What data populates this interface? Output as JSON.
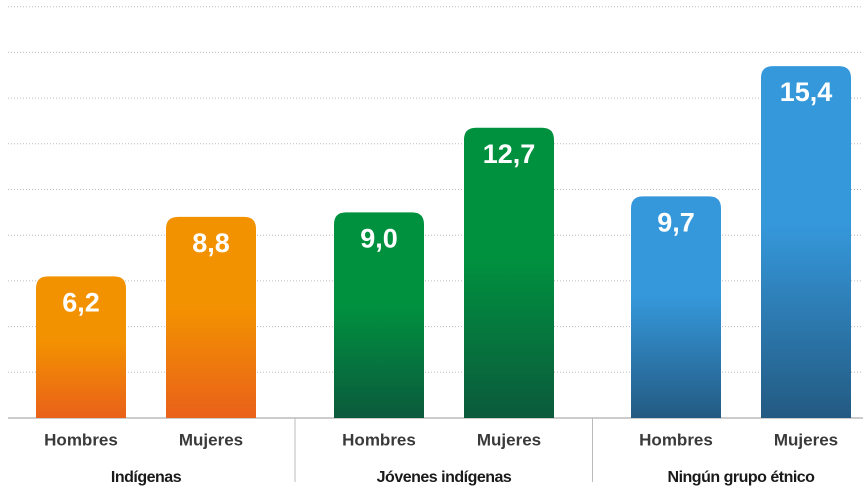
{
  "chart_data": {
    "type": "bar",
    "groups": [
      {
        "name": "Indígenas",
        "color": "#f39200",
        "color_bottom": "#e9611a",
        "categories": [
          "Hombres",
          "Mujeres"
        ],
        "values": [
          6.2,
          8.8
        ],
        "value_labels": [
          "6,2",
          "8,8"
        ]
      },
      {
        "name": "Jóvenes indígenas",
        "color": "#00913f",
        "color_bottom": "#0b5a3c",
        "categories": [
          "Hombres",
          "Mujeres"
        ],
        "values": [
          9.0,
          12.7
        ],
        "value_labels": [
          "9,0",
          "12,7"
        ]
      },
      {
        "name": "Ningún grupo étnico",
        "color": "#3598db",
        "color_bottom": "#235a82",
        "categories": [
          "Hombres",
          "Mujeres"
        ],
        "values": [
          9.7,
          15.4
        ],
        "value_labels": [
          "9,7",
          "15,4"
        ]
      }
    ],
    "ylim": [
      0,
      18
    ],
    "yticks": [
      0,
      2,
      4,
      6,
      8,
      10,
      12,
      14,
      16,
      18
    ],
    "grid": true
  }
}
